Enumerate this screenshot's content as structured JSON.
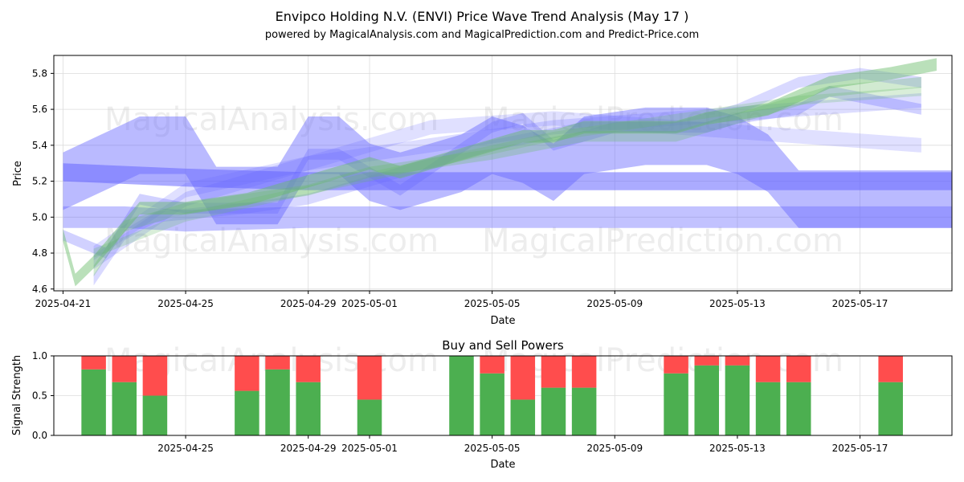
{
  "title_line1": "Envipco Holding N.V. (ENVI) Price Wave Trend Analysis (May 17 )",
  "title_line2": "powered by MagicalAnalysis.com and MagicalPrediction.com and Predict-Price.com",
  "watermarks": [
    "MagicalAnalysis.com",
    "MagicalPrediction.com"
  ],
  "colors": {
    "buy": "#4caf50",
    "sell": "#ff4d4d",
    "blue_band": "#6666ff",
    "green_band": "#66bb66"
  },
  "chart_data": [
    {
      "type": "area",
      "title": "Price Wave Trend",
      "xlabel": "Date",
      "ylabel": "Price",
      "x_tick_labels": [
        "2025-04-21",
        "2025-04-25",
        "2025-04-29",
        "2025-05-01",
        "2025-05-05",
        "2025-05-09",
        "2025-05-13",
        "2025-05-17"
      ],
      "x_tick_days": [
        0,
        4,
        8,
        10,
        14,
        18,
        22,
        26
      ],
      "x_range_days": [
        -0.3,
        29.0
      ],
      "y_tick_labels": [
        "4.6",
        "4.8",
        "5.0",
        "5.2",
        "5.4",
        "5.6",
        "5.8"
      ],
      "y_ticks": [
        4.6,
        4.8,
        5.0,
        5.2,
        5.4,
        5.6,
        5.8
      ],
      "ylim": [
        4.59,
        5.9
      ],
      "bands": [
        {
          "name": "wave-blue-1",
          "color": "blue",
          "opacity": 0.45,
          "width": 0.32,
          "points": [
            [
              0,
              5.2
            ],
            [
              2.5,
              5.4
            ],
            [
              4,
              5.4
            ],
            [
              5,
              5.12
            ],
            [
              7,
              5.12
            ],
            [
              8,
              5.4
            ],
            [
              9,
              5.4
            ],
            [
              10,
              5.25
            ],
            [
              11,
              5.2
            ],
            [
              13,
              5.3
            ],
            [
              14,
              5.4
            ],
            [
              15,
              5.35
            ],
            [
              16,
              5.25
            ],
            [
              17,
              5.4
            ],
            [
              19,
              5.45
            ],
            [
              21,
              5.45
            ],
            [
              22,
              5.4
            ],
            [
              23,
              5.3
            ],
            [
              24,
              5.1
            ],
            [
              29,
              5.1
            ]
          ]
        },
        {
          "name": "wave-blue-2",
          "color": "blue",
          "opacity": 0.4,
          "width": 0.12,
          "points": [
            [
              0,
              5.0
            ],
            [
              2,
              5.0
            ],
            [
              4,
              4.98
            ],
            [
              8,
              5.0
            ],
            [
              11,
              5.0
            ],
            [
              15,
              5.0
            ],
            [
              18,
              5.0
            ],
            [
              22,
              5.0
            ],
            [
              25,
              5.0
            ],
            [
              29,
              5.0
            ]
          ]
        },
        {
          "name": "trend-blue-main",
          "color": "blue",
          "opacity": 0.55,
          "width": 0.1,
          "points": [
            [
              0,
              5.25
            ],
            [
              4,
              5.22
            ],
            [
              8,
              5.2
            ],
            [
              12,
              5.2
            ],
            [
              16,
              5.2
            ],
            [
              20,
              5.2
            ],
            [
              24,
              5.2
            ],
            [
              29,
              5.2
            ]
          ]
        },
        {
          "name": "wave-blue-3",
          "color": "blue",
          "opacity": 0.3,
          "width": 0.06,
          "points": [
            [
              0,
              4.9
            ],
            [
              1.4,
              4.8
            ],
            [
              2.5,
              5.1
            ],
            [
              4,
              5.05
            ],
            [
              7,
              5.05
            ],
            [
              8,
              5.35
            ],
            [
              9,
              5.35
            ],
            [
              11,
              5.15
            ],
            [
              14,
              5.5
            ],
            [
              15,
              5.55
            ],
            [
              16,
              5.4
            ],
            [
              18,
              5.5
            ],
            [
              21,
              5.5
            ],
            [
              22,
              5.55
            ],
            [
              24,
              5.6
            ],
            [
              25,
              5.7
            ],
            [
              28,
              5.6
            ]
          ]
        },
        {
          "name": "wave-blue-4",
          "color": "blue",
          "opacity": 0.25,
          "width": 0.06,
          "points": [
            [
              1,
              4.65
            ],
            [
              2,
              4.9
            ],
            [
              3,
              5.0
            ],
            [
              6,
              5.05
            ],
            [
              8,
              5.1
            ],
            [
              10,
              5.2
            ],
            [
              14,
              5.4
            ],
            [
              17,
              5.5
            ],
            [
              20,
              5.5
            ],
            [
              22,
              5.6
            ],
            [
              24,
              5.75
            ],
            [
              26,
              5.8
            ],
            [
              28,
              5.75
            ]
          ]
        },
        {
          "name": "trend-blue-5",
          "color": "blue",
          "opacity": 0.22,
          "width": 0.08,
          "points": [
            [
              1,
              4.75
            ],
            [
              4,
              5.1
            ],
            [
              8,
              5.3
            ],
            [
              12,
              5.4
            ],
            [
              16,
              5.5
            ],
            [
              20,
              5.55
            ],
            [
              24,
              5.6
            ],
            [
              28,
              5.65
            ]
          ]
        },
        {
          "name": "trend-blue-6",
          "color": "blue",
          "opacity": 0.2,
          "width": 0.08,
          "points": [
            [
              1,
              4.8
            ],
            [
              4,
              5.15
            ],
            [
              8,
              5.3
            ],
            [
              12,
              5.5
            ],
            [
              16,
              5.55
            ],
            [
              20,
              5.5
            ],
            [
              24,
              5.45
            ],
            [
              28,
              5.4
            ]
          ]
        },
        {
          "name": "wave-green-1",
          "color": "green",
          "opacity": 0.45,
          "width": 0.07,
          "points": [
            [
              0,
              4.9
            ],
            [
              0.4,
              4.65
            ],
            [
              1,
              4.75
            ],
            [
              2.5,
              5.05
            ],
            [
              4,
              5.05
            ],
            [
              6,
              5.1
            ],
            [
              7,
              5.15
            ],
            [
              8,
              5.2
            ],
            [
              9,
              5.25
            ],
            [
              10,
              5.3
            ],
            [
              11,
              5.25
            ],
            [
              12,
              5.3
            ],
            [
              14,
              5.4
            ],
            [
              15,
              5.45
            ],
            [
              16,
              5.45
            ],
            [
              17,
              5.5
            ],
            [
              20,
              5.5
            ],
            [
              21,
              5.55
            ],
            [
              23,
              5.6
            ],
            [
              25,
              5.75
            ],
            [
              27,
              5.8
            ],
            [
              28.5,
              5.85
            ]
          ]
        },
        {
          "name": "wave-green-2",
          "color": "green",
          "opacity": 0.3,
          "width": 0.06,
          "points": [
            [
              1,
              4.7
            ],
            [
              2,
              4.95
            ],
            [
              4,
              5.05
            ],
            [
              8,
              5.15
            ],
            [
              10,
              5.25
            ],
            [
              14,
              5.35
            ],
            [
              17,
              5.45
            ],
            [
              20,
              5.45
            ],
            [
              22,
              5.55
            ],
            [
              25,
              5.7
            ],
            [
              28,
              5.75
            ]
          ]
        },
        {
          "name": "trend-green-3",
          "color": "green",
          "opacity": 0.25,
          "width": 0.05,
          "points": [
            [
              1,
              4.8
            ],
            [
              4,
              5.0
            ],
            [
              8,
              5.15
            ],
            [
              12,
              5.3
            ],
            [
              16,
              5.45
            ],
            [
              20,
              5.55
            ],
            [
              24,
              5.65
            ],
            [
              28,
              5.7
            ]
          ]
        }
      ]
    },
    {
      "type": "bar",
      "title": "Buy and Sell Powers",
      "xlabel": "Date",
      "ylabel": "Signal Strength",
      "x_tick_labels": [
        "2025-04-25",
        "2025-04-29",
        "2025-05-01",
        "2025-05-05",
        "2025-05-09",
        "2025-05-13",
        "2025-05-17"
      ],
      "x_tick_days": [
        4,
        8,
        10,
        14,
        18,
        22,
        26
      ],
      "x_range_days": [
        -0.3,
        29.0
      ],
      "y_tick_labels": [
        "0.0",
        "0.5",
        "1.0"
      ],
      "y_ticks": [
        0.0,
        0.5,
        1.0
      ],
      "ylim": [
        0.0,
        1.0
      ],
      "bars": [
        {
          "day": 1,
          "buy": 0.83
        },
        {
          "day": 2,
          "buy": 0.67
        },
        {
          "day": 3,
          "buy": 0.5
        },
        {
          "day": 6,
          "buy": 0.56
        },
        {
          "day": 7,
          "buy": 0.83
        },
        {
          "day": 8,
          "buy": 0.67
        },
        {
          "day": 10,
          "buy": 0.45
        },
        {
          "day": 13,
          "buy": 1.0
        },
        {
          "day": 14,
          "buy": 0.78
        },
        {
          "day": 15,
          "buy": 0.45
        },
        {
          "day": 16,
          "buy": 0.6
        },
        {
          "day": 17,
          "buy": 0.6
        },
        {
          "day": 20,
          "buy": 0.78
        },
        {
          "day": 21,
          "buy": 0.88
        },
        {
          "day": 22,
          "buy": 0.88
        },
        {
          "day": 23,
          "buy": 0.67
        },
        {
          "day": 24,
          "buy": 0.67
        },
        {
          "day": 27,
          "buy": 0.67
        }
      ]
    }
  ]
}
